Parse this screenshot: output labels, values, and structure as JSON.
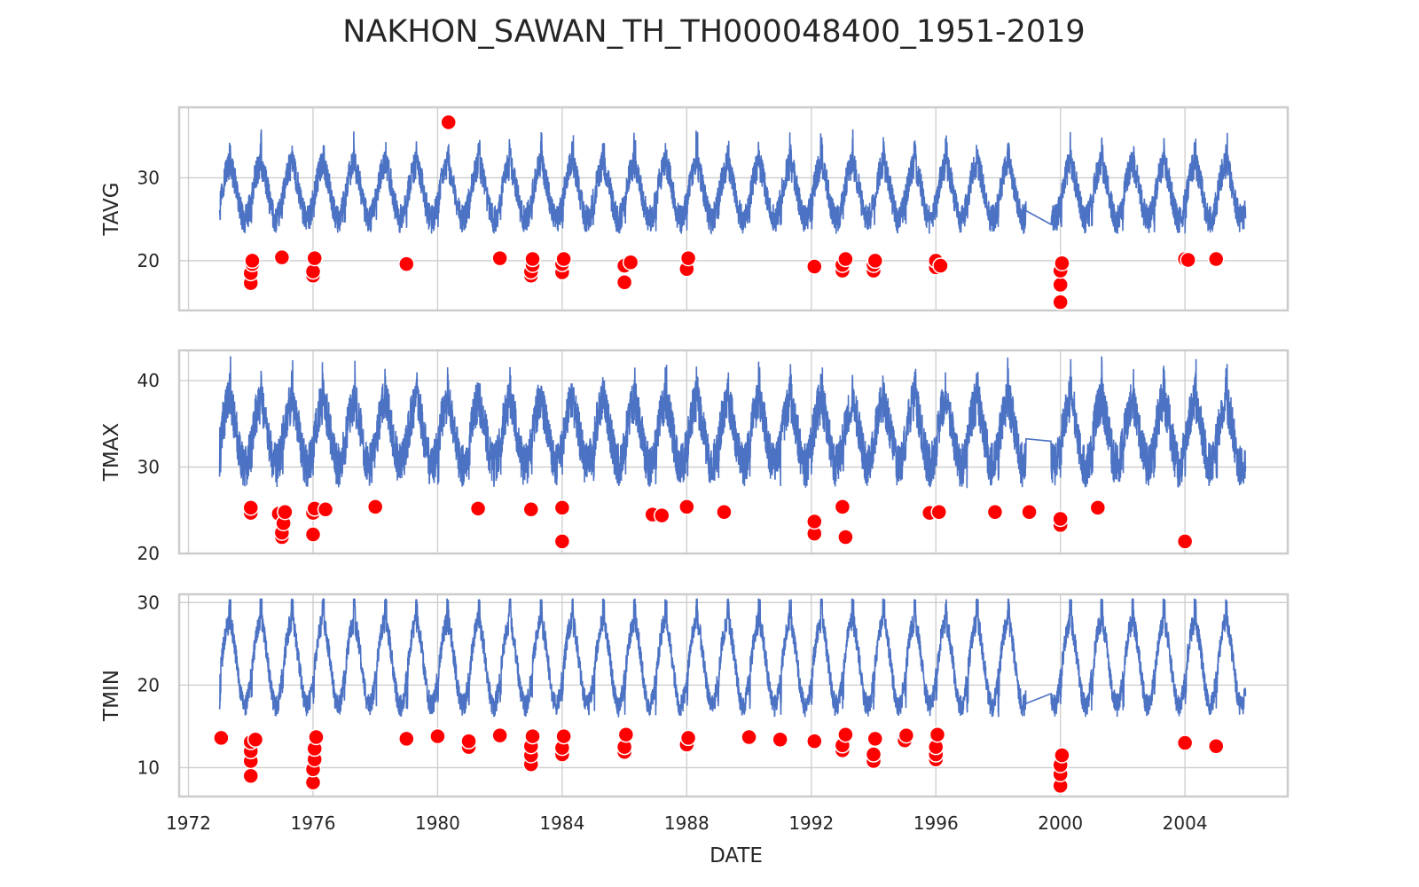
{
  "chart_data": {
    "type": "line",
    "title": "NAKHON_SAWAN_TH_TH000048400_1951-2019",
    "xlabel": "DATE",
    "x_tick_labels": [
      "1972",
      "1976",
      "1980",
      "1984",
      "1988",
      "1992",
      "1996",
      "2000",
      "2004"
    ],
    "xlim": [
      1971.7,
      2007.3
    ],
    "grid": true,
    "colors": {
      "line": "#4c72c4",
      "outlier": "#ff0000",
      "outlier_edge": "#ffffff",
      "grid": "#cccccc",
      "frame": "#cccccc"
    },
    "series_gap": [
      1998.9,
      1999.7
    ],
    "panels": [
      {
        "ylabel": "TAVG",
        "ylim": [
          14,
          38.5
        ],
        "yticks": [
          20,
          30
        ],
        "y_tick_labels": [
          "20",
          "30"
        ],
        "mean": 28.2,
        "amplitude": 3.2,
        "noise": 1.8,
        "outliers": [
          [
            1974.0,
            17.3
          ],
          [
            1974.0,
            18.5
          ],
          [
            1974.05,
            19.6
          ],
          [
            1974.05,
            20.0
          ],
          [
            1975.0,
            20.4
          ],
          [
            1976.0,
            18.2
          ],
          [
            1976.0,
            18.7
          ],
          [
            1976.05,
            20.3
          ],
          [
            1979.0,
            19.6
          ],
          [
            1980.35,
            36.7
          ],
          [
            1982.0,
            20.3
          ],
          [
            1983.0,
            18.2
          ],
          [
            1983.0,
            18.7
          ],
          [
            1983.05,
            19.5
          ],
          [
            1983.05,
            20.2
          ],
          [
            1984.0,
            18.6
          ],
          [
            1984.0,
            19.6
          ],
          [
            1984.05,
            20.2
          ],
          [
            1986.0,
            17.4
          ],
          [
            1986.0,
            19.4
          ],
          [
            1986.2,
            19.8
          ],
          [
            1988.0,
            19.0
          ],
          [
            1988.05,
            20.3
          ],
          [
            1992.1,
            19.3
          ],
          [
            1993.0,
            18.8
          ],
          [
            1993.0,
            19.5
          ],
          [
            1993.1,
            20.2
          ],
          [
            1994.0,
            18.8
          ],
          [
            1994.0,
            19.5
          ],
          [
            1994.05,
            20.0
          ],
          [
            1996.0,
            19.2
          ],
          [
            1996.0,
            20.0
          ],
          [
            1996.15,
            19.4
          ],
          [
            2000.0,
            15.0
          ],
          [
            2000.0,
            17.1
          ],
          [
            2000.0,
            18.8
          ],
          [
            2000.05,
            19.7
          ],
          [
            2004.0,
            20.2
          ],
          [
            2004.1,
            20.1
          ],
          [
            2005.0,
            20.2
          ]
        ]
      },
      {
        "ylabel": "TMAX",
        "ylim": [
          20,
          43.5
        ],
        "yticks": [
          20,
          30,
          40
        ],
        "y_tick_labels": [
          "20",
          "30",
          "40"
        ],
        "mean": 33.8,
        "amplitude": 3.6,
        "noise": 2.6,
        "outliers": [
          [
            1974.0,
            24.7
          ],
          [
            1974.0,
            25.3
          ],
          [
            1974.9,
            24.6
          ],
          [
            1975.0,
            21.9
          ],
          [
            1975.0,
            22.4
          ],
          [
            1975.05,
            23.5
          ],
          [
            1975.1,
            24.8
          ],
          [
            1976.0,
            22.2
          ],
          [
            1976.0,
            24.7
          ],
          [
            1976.05,
            25.2
          ],
          [
            1976.4,
            25.1
          ],
          [
            1978.0,
            25.4
          ],
          [
            1981.3,
            25.2
          ],
          [
            1983.0,
            25.1
          ],
          [
            1984.0,
            21.4
          ],
          [
            1984.0,
            25.3
          ],
          [
            1986.9,
            24.5
          ],
          [
            1987.2,
            24.4
          ],
          [
            1988.0,
            25.4
          ],
          [
            1989.2,
            24.8
          ],
          [
            1992.1,
            22.3
          ],
          [
            1992.1,
            23.7
          ],
          [
            1993.0,
            25.4
          ],
          [
            1993.1,
            21.9
          ],
          [
            1995.8,
            24.7
          ],
          [
            1996.1,
            24.8
          ],
          [
            1997.9,
            24.8
          ],
          [
            1999.0,
            24.8
          ],
          [
            2000.0,
            23.3
          ],
          [
            2000.0,
            24.0
          ],
          [
            2001.2,
            25.3
          ],
          [
            2004.0,
            21.4
          ]
        ]
      },
      {
        "ylabel": "TMIN",
        "ylim": [
          6.5,
          31
        ],
        "yticks": [
          10,
          20,
          30
        ],
        "y_tick_labels": [
          "10",
          "20",
          "30"
        ],
        "mean": 22.5,
        "amplitude": 5.0,
        "noise": 1.4,
        "outliers": [
          [
            1973.05,
            13.6
          ],
          [
            1974.0,
            9.0
          ],
          [
            1974.0,
            10.8
          ],
          [
            1974.0,
            12.0
          ],
          [
            1974.0,
            13.1
          ],
          [
            1974.15,
            13.4
          ],
          [
            1976.0,
            8.2
          ],
          [
            1976.0,
            9.8
          ],
          [
            1976.05,
            11.0
          ],
          [
            1976.05,
            12.3
          ],
          [
            1976.1,
            13.7
          ],
          [
            1979.0,
            13.5
          ],
          [
            1980.0,
            13.8
          ],
          [
            1981.0,
            12.5
          ],
          [
            1981.0,
            13.2
          ],
          [
            1982.0,
            13.9
          ],
          [
            1983.0,
            10.4
          ],
          [
            1983.0,
            11.5
          ],
          [
            1983.0,
            12.6
          ],
          [
            1983.05,
            13.8
          ],
          [
            1984.0,
            11.6
          ],
          [
            1984.0,
            12.4
          ],
          [
            1984.05,
            13.8
          ],
          [
            1986.0,
            11.9
          ],
          [
            1986.0,
            12.5
          ],
          [
            1986.05,
            14.0
          ],
          [
            1988.0,
            12.8
          ],
          [
            1988.05,
            13.6
          ],
          [
            1990.0,
            13.7
          ],
          [
            1991.0,
            13.4
          ],
          [
            1992.1,
            13.2
          ],
          [
            1993.0,
            12.1
          ],
          [
            1993.0,
            12.7
          ],
          [
            1993.1,
            14.0
          ],
          [
            1994.0,
            10.8
          ],
          [
            1994.0,
            11.6
          ],
          [
            1994.05,
            13.5
          ],
          [
            1995.0,
            13.3
          ],
          [
            1995.05,
            13.9
          ],
          [
            1996.0,
            11.0
          ],
          [
            1996.0,
            11.6
          ],
          [
            1996.0,
            12.5
          ],
          [
            1996.05,
            14.0
          ],
          [
            2000.0,
            7.8
          ],
          [
            2000.0,
            9.2
          ],
          [
            2000.0,
            10.3
          ],
          [
            2000.05,
            11.5
          ],
          [
            2004.0,
            13.0
          ],
          [
            2005.0,
            12.6
          ]
        ]
      }
    ]
  }
}
